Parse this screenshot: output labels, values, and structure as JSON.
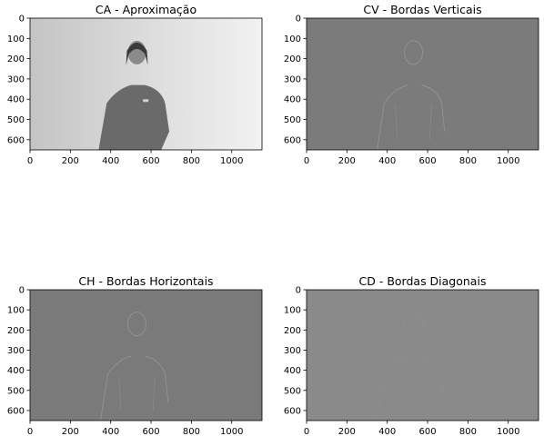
{
  "chart_data": [
    {
      "type": "image",
      "title": "CA - Aproximação",
      "xlim": [
        0,
        1150
      ],
      "ylim": [
        650,
        0
      ],
      "xticks": [
        0,
        200,
        400,
        600,
        800,
        1000
      ],
      "yticks": [
        0,
        100,
        200,
        300,
        400,
        500,
        600
      ],
      "background_color": "#e6e6e6",
      "colormap": "gray"
    },
    {
      "type": "image",
      "title": "CV - Bordas Verticais",
      "xlim": [
        0,
        1150
      ],
      "ylim": [
        650,
        0
      ],
      "xticks": [
        0,
        200,
        400,
        600,
        800,
        1000
      ],
      "yticks": [
        0,
        100,
        200,
        300,
        400,
        500,
        600
      ],
      "background_color": "#7b7b7b",
      "colormap": "gray"
    },
    {
      "type": "image",
      "title": "CH - Bordas Horizontais",
      "xlim": [
        0,
        1150
      ],
      "ylim": [
        650,
        0
      ],
      "xticks": [
        0,
        200,
        400,
        600,
        800,
        1000
      ],
      "yticks": [
        0,
        100,
        200,
        300,
        400,
        500,
        600
      ],
      "background_color": "#7a7a7a",
      "colormap": "gray"
    },
    {
      "type": "image",
      "title": "CD - Bordas Diagonais",
      "xlim": [
        0,
        1150
      ],
      "ylim": [
        650,
        0
      ],
      "xticks": [
        0,
        200,
        400,
        600,
        800,
        1000
      ],
      "yticks": [
        0,
        100,
        200,
        300,
        400,
        500,
        600
      ],
      "background_color": "#8a8a8a",
      "colormap": "gray"
    }
  ]
}
